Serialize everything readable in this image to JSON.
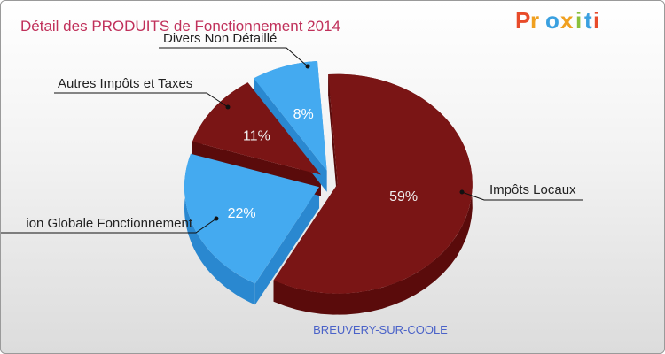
{
  "title": "Détail des PRODUITS de Fonctionnement 2014",
  "footer": "BREUVERY-SUR-COOLE",
  "logo": "Proxiti",
  "colors": {
    "title": "#c0305a",
    "footer": "#4a62c8",
    "dark_red": "#7a1515",
    "dark_red_side": "#5a0b0b",
    "blue": "#44aaf0",
    "blue_side": "#2a88d0",
    "logo_letters": [
      "#e84b2a",
      "#f0a020",
      "#3aa0e0",
      "#f0a020",
      "#8ac03c",
      "#3aa0e0",
      "#e84b2a"
    ]
  },
  "chart_data": {
    "type": "pie",
    "title": "Détail des PRODUITS de Fonctionnement 2014",
    "slices": [
      {
        "label": "Impôts Locaux",
        "value": 59,
        "display": "59%",
        "color": "dark_red"
      },
      {
        "label": "Dotation Globale Fonctionnement",
        "shown_label": "ion Globale Fonctionnement",
        "value": 22,
        "display": "22%",
        "color": "blue"
      },
      {
        "label": "Autres Impôts et Taxes",
        "value": 11,
        "display": "11%",
        "color": "dark_red"
      },
      {
        "label": "Divers Non Détaillé",
        "value": 8,
        "display": "8%",
        "color": "blue"
      }
    ]
  }
}
